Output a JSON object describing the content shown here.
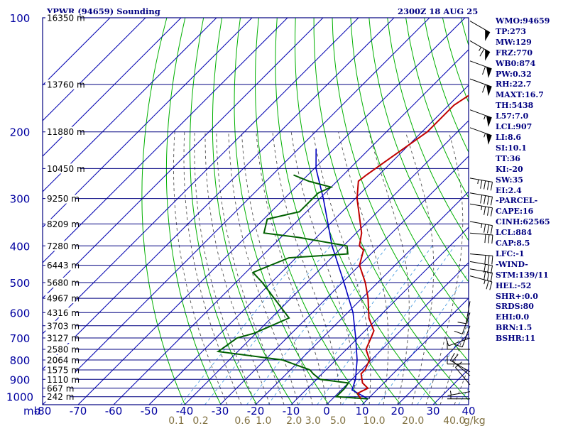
{
  "chart_data": {
    "type": "skew-t sounding",
    "title": "YPWR (94659) Sounding",
    "valid_time": "2300Z 18 AUG 25",
    "pressure_unit_label": "mb",
    "temp_range": [
      -80,
      40
    ],
    "pressure_range": [
      100,
      1050
    ],
    "log_pressure_axis": true,
    "pressure_ticks": [
      100,
      200,
      300,
      400,
      500,
      600,
      700,
      800,
      900,
      1000
    ],
    "temp_ticks": [
      -80,
      -70,
      -60,
      -50,
      -40,
      -30,
      -20,
      -10,
      0,
      10,
      20,
      30,
      40
    ],
    "height_labels": [
      {
        "p": 100,
        "label": "16350 m"
      },
      {
        "p": 150,
        "label": "13760 m"
      },
      {
        "p": 200,
        "label": "11880 m"
      },
      {
        "p": 250,
        "label": "10450 m"
      },
      {
        "p": 300,
        "label": "9250 m"
      },
      {
        "p": 350,
        "label": "8209 m"
      },
      {
        "p": 400,
        "label": "7280 m"
      },
      {
        "p": 450,
        "label": "6443 m"
      },
      {
        "p": 500,
        "label": "5680 m"
      },
      {
        "p": 550,
        "label": "4967 m"
      },
      {
        "p": 600,
        "label": "4316 m"
      },
      {
        "p": 650,
        "label": "3703 m"
      },
      {
        "p": 700,
        "label": "3127 m"
      },
      {
        "p": 750,
        "label": "2580 m"
      },
      {
        "p": 800,
        "label": "2064 m"
      },
      {
        "p": 850,
        "label": "1575 m"
      },
      {
        "p": 900,
        "label": "1110 m"
      },
      {
        "p": 950,
        "label": "667 m"
      },
      {
        "p": 1000,
        "label": "242 m"
      }
    ],
    "mixing_ratio_labels": [
      "0.1",
      "0.2",
      "0.6",
      "1.0",
      "2.0",
      "3.0",
      "5.0",
      "10.0",
      "20.0",
      "40.0"
    ],
    "mixing_ratio_values": [
      0.1,
      0.2,
      0.6,
      1.0,
      2.0,
      3.0,
      5.0,
      10.0,
      20.0,
      40.0
    ],
    "mixing_ratio_unit": "g/kg",
    "temperature": [
      {
        "p": 1013,
        "t": 8.0
      },
      {
        "p": 1000,
        "t": 7.0
      },
      {
        "p": 980,
        "t": 5.5
      },
      {
        "p": 950,
        "t": 7.0
      },
      {
        "p": 920,
        "t": 4.0
      },
      {
        "p": 870,
        "t": 1.0
      },
      {
        "p": 850,
        "t": 1.0
      },
      {
        "p": 800,
        "t": -0.5
      },
      {
        "p": 750,
        "t": -4.5
      },
      {
        "p": 700,
        "t": -6.3
      },
      {
        "p": 670,
        "t": -7.5
      },
      {
        "p": 620,
        "t": -12.5
      },
      {
        "p": 550,
        "t": -18.3
      },
      {
        "p": 500,
        "t": -23.5
      },
      {
        "p": 450,
        "t": -30.0
      },
      {
        "p": 410,
        "t": -33.2
      },
      {
        "p": 400,
        "t": -35.5
      },
      {
        "p": 370,
        "t": -38.5
      },
      {
        "p": 350,
        "t": -41.4
      },
      {
        "p": 300,
        "t": -49.5
      },
      {
        "p": 270,
        "t": -54.0
      },
      {
        "p": 260,
        "t": -53.5
      },
      {
        "p": 240,
        "t": -52.0
      },
      {
        "p": 200,
        "t": -48.5
      },
      {
        "p": 170,
        "t": -48.5
      },
      {
        "p": 160,
        "t": -47.0
      },
      {
        "p": 140,
        "t": -51.5
      },
      {
        "p": 120,
        "t": -54.0
      },
      {
        "p": 100,
        "t": -60.0
      }
    ],
    "dewpoint": [
      {
        "p": 1013,
        "t": 10.0
      },
      {
        "p": 1000,
        "t": 0.5
      },
      {
        "p": 950,
        "t": 0.5
      },
      {
        "p": 920,
        "t": 0.0
      },
      {
        "p": 900,
        "t": -9.0
      },
      {
        "p": 870,
        "t": -12.5
      },
      {
        "p": 850,
        "t": -14.5
      },
      {
        "p": 800,
        "t": -25.0
      },
      {
        "p": 760,
        "t": -45.5
      },
      {
        "p": 700,
        "t": -44.0
      },
      {
        "p": 680,
        "t": -40.5
      },
      {
        "p": 620,
        "t": -35.0
      },
      {
        "p": 500,
        "t": -52.5
      },
      {
        "p": 470,
        "t": -58.0
      },
      {
        "p": 430,
        "t": -52.0
      },
      {
        "p": 420,
        "t": -36.5
      },
      {
        "p": 400,
        "t": -39.0
      },
      {
        "p": 380,
        "t": -55.0
      },
      {
        "p": 370,
        "t": -66.0
      },
      {
        "p": 340,
        "t": -69.0
      },
      {
        "p": 325,
        "t": -62.0
      },
      {
        "p": 290,
        "t": -62.0
      },
      {
        "p": 280,
        "t": -60.0
      },
      {
        "p": 270,
        "t": -68.0
      },
      {
        "p": 260,
        "t": -74.0
      }
    ],
    "parcel": [
      {
        "p": 1013,
        "t": 10.0
      },
      {
        "p": 960,
        "t": 3.0
      },
      {
        "p": 900,
        "t": 1.0
      },
      {
        "p": 800,
        "t": -4.0
      },
      {
        "p": 700,
        "t": -10.6
      },
      {
        "p": 600,
        "t": -18.5
      },
      {
        "p": 500,
        "t": -29.5
      },
      {
        "p": 400,
        "t": -43.2
      },
      {
        "p": 300,
        "t": -59.0
      },
      {
        "p": 250,
        "t": -69.5
      },
      {
        "p": 222,
        "t": -75.0
      }
    ],
    "wind_barbs": [
      {
        "p": 102,
        "dir": 300,
        "kt": 50
      },
      {
        "p": 115,
        "dir": 300,
        "kt": 65
      },
      {
        "p": 130,
        "dir": 290,
        "kt": 60
      },
      {
        "p": 145,
        "dir": 290,
        "kt": 60
      },
      {
        "p": 175,
        "dir": 290,
        "kt": 55
      },
      {
        "p": 195,
        "dir": 290,
        "kt": 55
      },
      {
        "p": 265,
        "dir": 280,
        "kt": 45
      },
      {
        "p": 290,
        "dir": 280,
        "kt": 40
      },
      {
        "p": 310,
        "dir": 280,
        "kt": 35
      },
      {
        "p": 345,
        "dir": 280,
        "kt": 35
      },
      {
        "p": 370,
        "dir": 275,
        "kt": 30
      },
      {
        "p": 420,
        "dir": 275,
        "kt": 30
      },
      {
        "p": 440,
        "dir": 280,
        "kt": 30
      },
      {
        "p": 460,
        "dir": 280,
        "kt": 30
      },
      {
        "p": 480,
        "dir": 285,
        "kt": 25
      },
      {
        "p": 560,
        "dir": 10,
        "kt": 10
      },
      {
        "p": 600,
        "dir": 20,
        "kt": 10
      },
      {
        "p": 650,
        "dir": 20,
        "kt": 10
      },
      {
        "p": 700,
        "dir": 70,
        "kt": 10
      },
      {
        "p": 750,
        "dir": 90,
        "kt": 10
      },
      {
        "p": 820,
        "dir": 90,
        "kt": 10
      },
      {
        "p": 860,
        "dir": 120,
        "kt": 10
      },
      {
        "p": 880,
        "dir": 130,
        "kt": 10
      },
      {
        "p": 930,
        "dir": 140,
        "kt": 10
      },
      {
        "p": 970,
        "dir": 80,
        "kt": 5
      },
      {
        "p": 1013,
        "dir": 90,
        "kt": 5
      }
    ],
    "colors": {
      "frame": "#000080",
      "isotherm": "#0000b0",
      "dry_adiabat": "#00b000",
      "moist_adiabat": "#505050",
      "mixing_ratio": "#4a9de0",
      "temperature": "#c00000",
      "dewpoint": "#006000",
      "parcel": "#0000c0",
      "barb": "#000000",
      "title_text": "#000080",
      "axis_text": "#0000a0",
      "mixing_ratio_text": "#807040"
    }
  },
  "indices": [
    "WMO:94659",
    "TP:273",
    "MW:129",
    "FRZ:770",
    "WB0:874",
    "PW:0.32",
    "RH:22.7",
    "MAXT:16.7",
    "TH:5438",
    "L57:7.0",
    "LCL:907",
    "LI:8.6",
    "SI:10.1",
    "TT:36",
    "KI:-20",
    "SW:35",
    "EI:2.4",
    "-PARCEL-",
    "CAPE:16",
    "CINH:62565",
    "LCL:884",
    "CAP:8.5",
    "LFC:-1",
    "-WIND-",
    "STM:139/11",
    "HEL:-52",
    "SHR+:0.0",
    "SRDS:80",
    "EHI:0.0",
    "BRN:1.5",
    "BSHR:11"
  ]
}
